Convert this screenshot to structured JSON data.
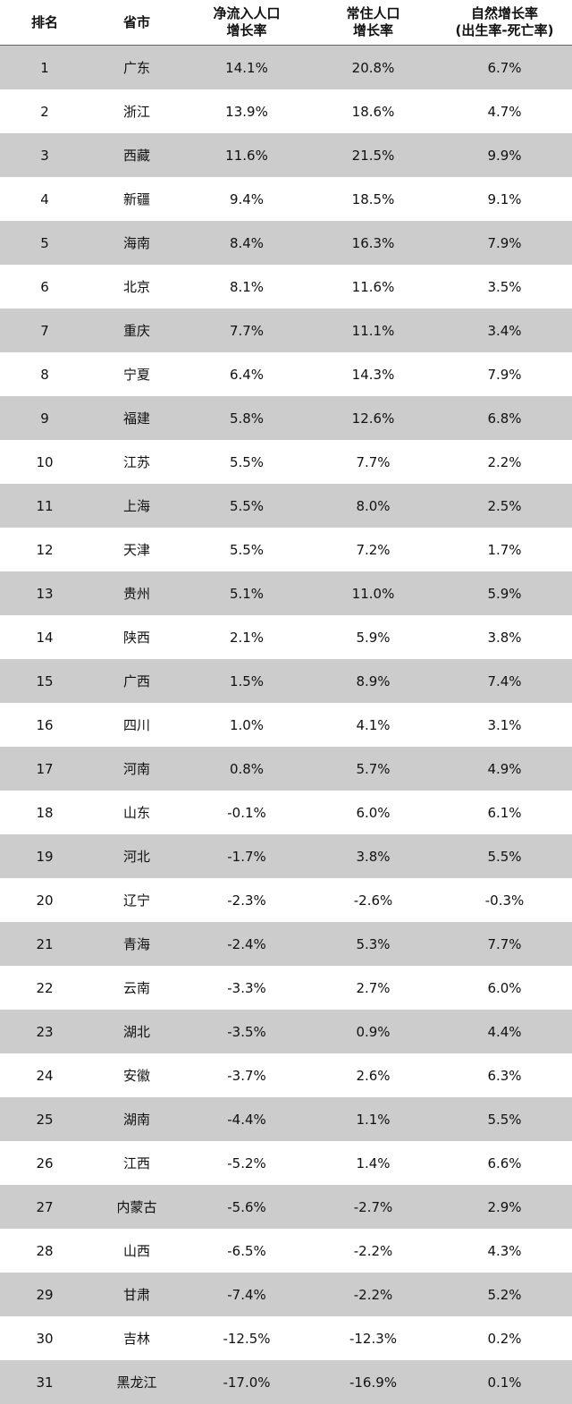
{
  "chart_data": {
    "type": "table",
    "columns": [
      {
        "key": "rank",
        "lines": [
          "排名"
        ]
      },
      {
        "key": "province",
        "lines": [
          "省市"
        ]
      },
      {
        "key": "net_inflow",
        "lines": [
          "净流入人口",
          "增长率"
        ]
      },
      {
        "key": "resident",
        "lines": [
          "常住人口",
          "增长率"
        ]
      },
      {
        "key": "natural",
        "lines": [
          "自然增长率",
          "(出生率-死亡率)"
        ]
      }
    ],
    "rows": [
      [
        "1",
        "广东",
        "14.1%",
        "20.8%",
        "6.7%"
      ],
      [
        "2",
        "浙江",
        "13.9%",
        "18.6%",
        "4.7%"
      ],
      [
        "3",
        "西藏",
        "11.6%",
        "21.5%",
        "9.9%"
      ],
      [
        "4",
        "新疆",
        "9.4%",
        "18.5%",
        "9.1%"
      ],
      [
        "5",
        "海南",
        "8.4%",
        "16.3%",
        "7.9%"
      ],
      [
        "6",
        "北京",
        "8.1%",
        "11.6%",
        "3.5%"
      ],
      [
        "7",
        "重庆",
        "7.7%",
        "11.1%",
        "3.4%"
      ],
      [
        "8",
        "宁夏",
        "6.4%",
        "14.3%",
        "7.9%"
      ],
      [
        "9",
        "福建",
        "5.8%",
        "12.6%",
        "6.8%"
      ],
      [
        "10",
        "江苏",
        "5.5%",
        "7.7%",
        "2.2%"
      ],
      [
        "11",
        "上海",
        "5.5%",
        "8.0%",
        "2.5%"
      ],
      [
        "12",
        "天津",
        "5.5%",
        "7.2%",
        "1.7%"
      ],
      [
        "13",
        "贵州",
        "5.1%",
        "11.0%",
        "5.9%"
      ],
      [
        "14",
        "陕西",
        "2.1%",
        "5.9%",
        "3.8%"
      ],
      [
        "15",
        "广西",
        "1.5%",
        "8.9%",
        "7.4%"
      ],
      [
        "16",
        "四川",
        "1.0%",
        "4.1%",
        "3.1%"
      ],
      [
        "17",
        "河南",
        "0.8%",
        "5.7%",
        "4.9%"
      ],
      [
        "18",
        "山东",
        "-0.1%",
        "6.0%",
        "6.1%"
      ],
      [
        "19",
        "河北",
        "-1.7%",
        "3.8%",
        "5.5%"
      ],
      [
        "20",
        "辽宁",
        "-2.3%",
        "-2.6%",
        "-0.3%"
      ],
      [
        "21",
        "青海",
        "-2.4%",
        "5.3%",
        "7.7%"
      ],
      [
        "22",
        "云南",
        "-3.3%",
        "2.7%",
        "6.0%"
      ],
      [
        "23",
        "湖北",
        "-3.5%",
        "0.9%",
        "4.4%"
      ],
      [
        "24",
        "安徽",
        "-3.7%",
        "2.6%",
        "6.3%"
      ],
      [
        "25",
        "湖南",
        "-4.4%",
        "1.1%",
        "5.5%"
      ],
      [
        "26",
        "江西",
        "-5.2%",
        "1.4%",
        "6.6%"
      ],
      [
        "27",
        "内蒙古",
        "-5.6%",
        "-2.7%",
        "2.9%"
      ],
      [
        "28",
        "山西",
        "-6.5%",
        "-2.2%",
        "4.3%"
      ],
      [
        "29",
        "甘肃",
        "-7.4%",
        "-2.2%",
        "5.2%"
      ],
      [
        "30",
        "吉林",
        "-12.5%",
        "-12.3%",
        "0.2%"
      ],
      [
        "31",
        "黑龙江",
        "-17.0%",
        "-16.9%",
        "0.1%"
      ]
    ]
  },
  "colors": {
    "stripe": "#cccccc",
    "background": "#ffffff",
    "text": "#111111",
    "header_rule": "#666666"
  }
}
